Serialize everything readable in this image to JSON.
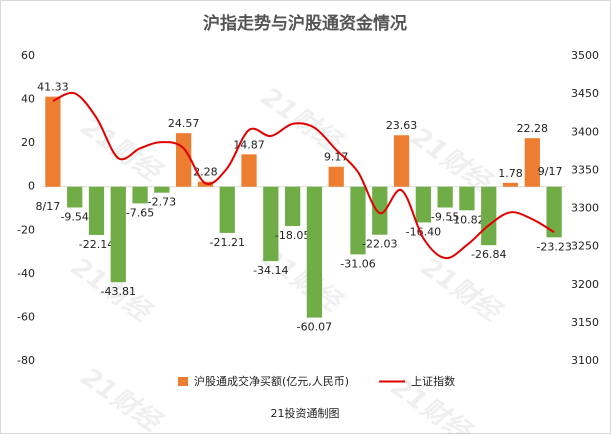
{
  "chart_data": {
    "type": "bar-line",
    "title": "沪指走势与沪股通资金情况",
    "footer": "21投资通制图",
    "watermark": "21财经",
    "categories": [
      "8/17",
      null,
      null,
      null,
      null,
      null,
      null,
      null,
      null,
      null,
      null,
      null,
      null,
      null,
      null,
      null,
      null,
      null,
      null,
      null,
      null,
      null,
      null,
      "9/17"
    ],
    "series": [
      {
        "name": "沪股通成交净买额(亿元,人民币)",
        "type": "bar",
        "color": "#ed7d31",
        "negative_color": "#70ad47",
        "values": [
          41.33,
          -9.54,
          -22.14,
          -43.81,
          -7.65,
          -2.73,
          24.57,
          2.28,
          -21.21,
          14.87,
          -34.14,
          -18.05,
          -60.07,
          9.17,
          -31.06,
          -22.03,
          23.63,
          -16.4,
          -9.55,
          -10.82,
          -26.84,
          1.78,
          22.28,
          -23.23
        ],
        "value_labels": [
          "41.33",
          "-9.54",
          "-22.14",
          "-43.81",
          "-7.65",
          "-2.73",
          "24.57",
          "2.28",
          "-21.21",
          "14.87",
          "-34.14",
          "-18.05",
          "-60.07",
          "9.17",
          "-31.06",
          "-22.03",
          "23.63",
          "-16.40",
          "-9.55",
          "-10.82",
          "-26.84",
          "1.78",
          "22.28",
          "-23.23"
        ]
      },
      {
        "name": "上证指数",
        "type": "line",
        "axis": "y2",
        "color": "#e00000",
        "values": [
          3441,
          3451,
          3419,
          3366,
          3379,
          3387,
          3379,
          3333,
          3353,
          3403,
          3395,
          3411,
          3406,
          3377,
          3348,
          3294,
          3324,
          3261,
          3235,
          3252,
          3278,
          3295,
          3286,
          3269
        ]
      }
    ],
    "ylim": [
      -80,
      60
    ],
    "yticks": [
      -80,
      -60,
      -40,
      -20,
      0,
      20,
      40,
      60
    ],
    "y2lim": [
      3100,
      3500
    ],
    "y2ticks": [
      3100,
      3150,
      3200,
      3250,
      3300,
      3350,
      3400,
      3450,
      3500
    ]
  }
}
